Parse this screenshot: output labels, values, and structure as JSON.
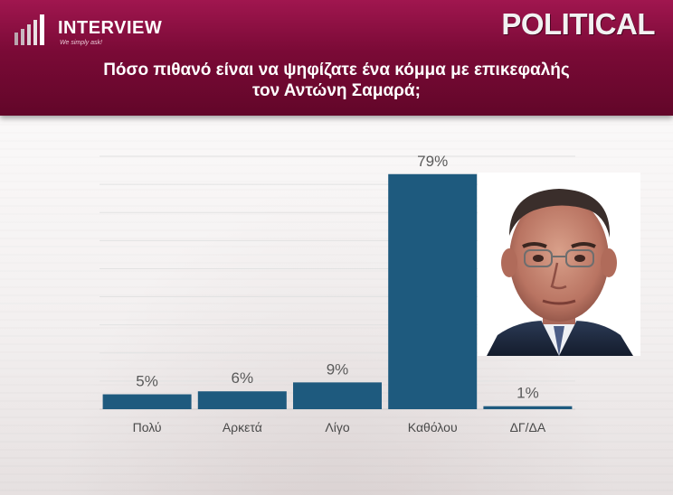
{
  "header": {
    "logo_text": "INTERVIEW",
    "logo_tagline": "We simply ask!",
    "brand": "POLITICAL",
    "question_line1": "Πόσο πιθανό είναι να ψηφίζατε ένα κόμμα με επικεφαλής",
    "question_line2": "τον Αντώνη Σαμαρά;"
  },
  "chart_data": {
    "type": "bar",
    "categories": [
      "Πολύ",
      "Αρκετά",
      "Λίγο",
      "Καθόλου",
      "ΔΓ/ΔΑ"
    ],
    "values": [
      5,
      6,
      9,
      79,
      1
    ],
    "value_labels": [
      "5%",
      "6%",
      "9%",
      "79%",
      "1%"
    ],
    "unit": "%",
    "title": "",
    "xlabel": "",
    "ylabel": "",
    "ylim": [
      0,
      85
    ],
    "grid": true,
    "bar_color": "#1e5a7e"
  },
  "colors": {
    "header": "#7a0a36",
    "bar": "#1e5a7e",
    "label": "#4a4a4a",
    "value_label": "#5a5a5a"
  }
}
